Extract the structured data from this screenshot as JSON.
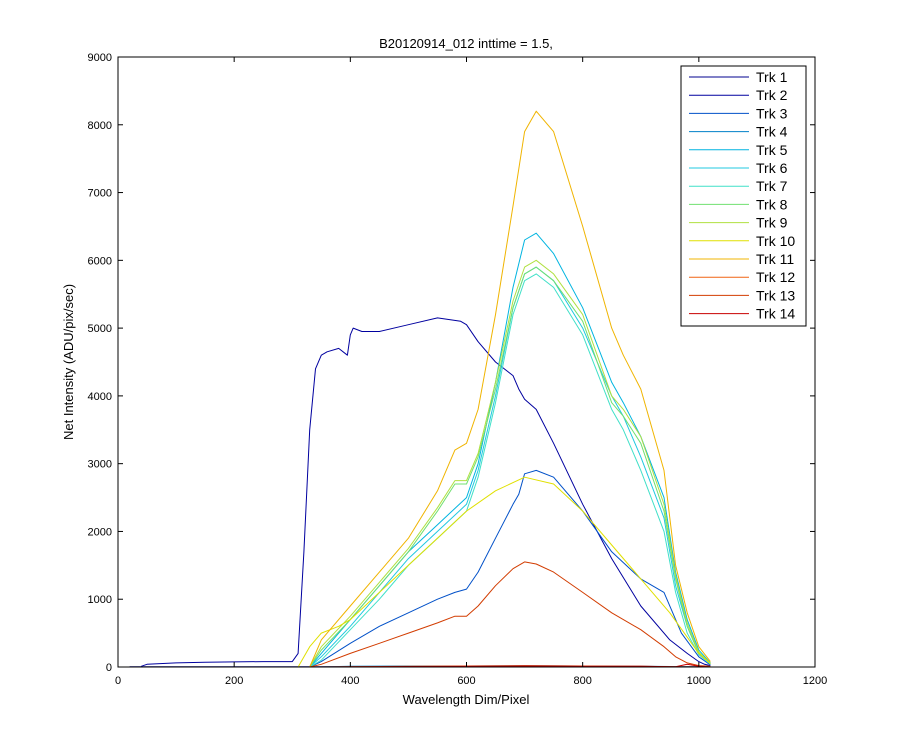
{
  "chart_data": {
    "type": "line",
    "title": "B20120914_012 inttime = 1.5,",
    "xlabel": "Wavelength Dim/Pixel",
    "ylabel": "Net Intensity (ADU/pix/sec)",
    "xlim": [
      0,
      1200
    ],
    "ylim": [
      0,
      9000
    ],
    "xticks": [
      0,
      200,
      400,
      600,
      800,
      1000,
      1200
    ],
    "yticks": [
      0,
      1000,
      2000,
      3000,
      4000,
      5000,
      6000,
      7000,
      8000,
      9000
    ],
    "legend_position": "top-right",
    "grid": false,
    "series": [
      {
        "name": "Trk 1",
        "color": "#00008f",
        "x": [
          20,
          1020
        ],
        "y": [
          5,
          5
        ]
      },
      {
        "name": "Trk 2",
        "color": "#00009f",
        "x": [
          40,
          50,
          100,
          150,
          200,
          250,
          300,
          310,
          320,
          330,
          340,
          350,
          360,
          380,
          395,
          400,
          405,
          420,
          450,
          500,
          550,
          590,
          600,
          620,
          650,
          680,
          690,
          700,
          720,
          750,
          800,
          850,
          900,
          950,
          980,
          1000,
          1010,
          1020
        ],
        "y": [
          10,
          40,
          60,
          70,
          75,
          80,
          80,
          200,
          1700,
          3500,
          4400,
          4600,
          4650,
          4700,
          4600,
          4900,
          5000,
          4950,
          4950,
          5050,
          5150,
          5100,
          5050,
          4800,
          4500,
          4300,
          4100,
          3950,
          3800,
          3300,
          2400,
          1600,
          900,
          400,
          200,
          80,
          40,
          20
        ]
      },
      {
        "name": "Trk 3",
        "color": "#0050c8",
        "x": [
          330,
          350,
          400,
          450,
          500,
          550,
          580,
          600,
          620,
          650,
          680,
          690,
          700,
          720,
          750,
          800,
          850,
          900,
          940,
          970,
          1000,
          1020
        ],
        "y": [
          0,
          80,
          350,
          600,
          800,
          1000,
          1100,
          1150,
          1400,
          1900,
          2400,
          2550,
          2850,
          2900,
          2800,
          2300,
          1700,
          1300,
          1100,
          500,
          150,
          30
        ]
      },
      {
        "name": "Trk 4",
        "color": "#0080c8",
        "x": [
          340,
          400,
          500,
          600,
          700,
          800,
          900,
          1000,
          1020
        ],
        "y": [
          0,
          10,
          15,
          15,
          20,
          15,
          10,
          5,
          0
        ]
      },
      {
        "name": "Trk 5",
        "color": "#00b4e0",
        "x": [
          330,
          350,
          400,
          450,
          500,
          550,
          600,
          620,
          650,
          680,
          700,
          720,
          750,
          800,
          850,
          870,
          900,
          940,
          960,
          980,
          1000,
          1020
        ],
        "y": [
          0,
          200,
          700,
          1200,
          1700,
          2100,
          2500,
          3000,
          4200,
          5600,
          6300,
          6400,
          6100,
          5300,
          4200,
          3900,
          3400,
          2500,
          1400,
          700,
          250,
          60
        ]
      },
      {
        "name": "Trk 6",
        "color": "#20c8e0",
        "x": [
          330,
          350,
          400,
          450,
          500,
          550,
          600,
          620,
          650,
          680,
          700,
          720,
          750,
          800,
          850,
          870,
          900,
          940,
          960,
          980,
          1000,
          1020
        ],
        "y": [
          0,
          150,
          600,
          1100,
          1600,
          2000,
          2400,
          2900,
          4000,
          5300,
          5800,
          5900,
          5700,
          5000,
          4000,
          3700,
          3100,
          2200,
          1200,
          600,
          200,
          50
        ]
      },
      {
        "name": "Trk 7",
        "color": "#40e0c8",
        "x": [
          330,
          350,
          400,
          450,
          500,
          550,
          600,
          620,
          650,
          680,
          700,
          720,
          750,
          800,
          850,
          870,
          900,
          940,
          960,
          980,
          1000,
          1020
        ],
        "y": [
          0,
          100,
          550,
          1000,
          1500,
          1900,
          2300,
          2800,
          3900,
          5200,
          5700,
          5800,
          5600,
          4900,
          3800,
          3500,
          2900,
          2000,
          1100,
          500,
          180,
          40
        ]
      },
      {
        "name": "Trk 8",
        "color": "#70e070",
        "x": [
          330,
          350,
          400,
          450,
          500,
          550,
          580,
          600,
          620,
          650,
          680,
          700,
          720,
          750,
          800,
          850,
          870,
          900,
          940,
          960,
          980,
          1000,
          1020
        ],
        "y": [
          0,
          250,
          700,
          1200,
          1700,
          2300,
          2700,
          2700,
          3100,
          4100,
          5300,
          5800,
          5900,
          5700,
          5100,
          3900,
          3700,
          3300,
          2300,
          1300,
          600,
          200,
          50
        ]
      },
      {
        "name": "Trk 9",
        "color": "#b0e040",
        "x": [
          330,
          350,
          400,
          450,
          500,
          550,
          580,
          600,
          620,
          650,
          680,
          700,
          720,
          750,
          800,
          850,
          870,
          900,
          940,
          960,
          980,
          1000,
          1020
        ],
        "y": [
          0,
          300,
          750,
          1250,
          1750,
          2350,
          2750,
          2750,
          3150,
          4200,
          5400,
          5900,
          6000,
          5800,
          5200,
          4000,
          3800,
          3400,
          2400,
          1350,
          650,
          220,
          55
        ]
      },
      {
        "name": "Trk 10",
        "color": "#e0e000",
        "x": [
          310,
          330,
          350,
          380,
          400,
          450,
          500,
          550,
          600,
          650,
          700,
          750,
          800,
          850,
          900,
          950,
          1000,
          1020
        ],
        "y": [
          0,
          300,
          500,
          600,
          700,
          1100,
          1500,
          1900,
          2300,
          2600,
          2800,
          2700,
          2300,
          1800,
          1300,
          800,
          200,
          50
        ]
      },
      {
        "name": "Trk 11",
        "color": "#f0b400",
        "x": [
          330,
          350,
          400,
          450,
          500,
          550,
          580,
          600,
          620,
          650,
          680,
          700,
          720,
          750,
          800,
          850,
          870,
          900,
          940,
          960,
          980,
          1000,
          1020
        ],
        "y": [
          0,
          400,
          900,
          1400,
          1900,
          2600,
          3200,
          3300,
          3800,
          5200,
          6800,
          7900,
          8200,
          7900,
          6500,
          5000,
          4600,
          4100,
          2900,
          1500,
          800,
          300,
          80
        ]
      },
      {
        "name": "Trk 12",
        "color": "#f06414",
        "x": [
          340,
          400,
          500,
          600,
          700,
          800,
          900,
          950,
          1000,
          1020
        ],
        "y": [
          0,
          5,
          10,
          15,
          20,
          15,
          10,
          5,
          2,
          0
        ]
      },
      {
        "name": "Trk 13",
        "color": "#d23c00",
        "x": [
          330,
          350,
          400,
          450,
          500,
          550,
          580,
          600,
          620,
          650,
          680,
          700,
          720,
          750,
          800,
          850,
          900,
          940,
          960,
          980,
          1000,
          1020
        ],
        "y": [
          0,
          40,
          200,
          350,
          500,
          650,
          750,
          750,
          900,
          1200,
          1450,
          1550,
          1520,
          1400,
          1100,
          800,
          550,
          300,
          150,
          60,
          20,
          10
        ]
      },
      {
        "name": "Trk 14",
        "color": "#c80000",
        "x": [
          340,
          400,
          500,
          600,
          700,
          800,
          900,
          960,
          980,
          1000,
          1020
        ],
        "y": [
          0,
          5,
          8,
          10,
          15,
          12,
          10,
          5,
          40,
          10,
          0
        ]
      }
    ]
  }
}
